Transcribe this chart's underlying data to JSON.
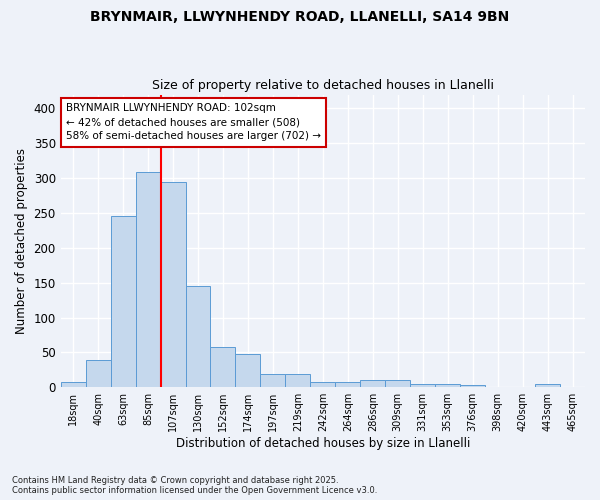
{
  "title1": "BRYNMAIR, LLWYNHENDY ROAD, LLANELLI, SA14 9BN",
  "title2": "Size of property relative to detached houses in Llanelli",
  "xlabel": "Distribution of detached houses by size in Llanelli",
  "ylabel": "Number of detached properties",
  "bin_labels": [
    "18sqm",
    "40sqm",
    "63sqm",
    "85sqm",
    "107sqm",
    "130sqm",
    "152sqm",
    "174sqm",
    "197sqm",
    "219sqm",
    "242sqm",
    "264sqm",
    "286sqm",
    "309sqm",
    "331sqm",
    "353sqm",
    "376sqm",
    "398sqm",
    "420sqm",
    "443sqm",
    "465sqm"
  ],
  "bin_values": [
    7,
    39,
    245,
    309,
    295,
    145,
    57,
    48,
    19,
    19,
    7,
    7,
    10,
    10,
    4,
    4,
    3,
    1,
    0,
    4,
    0
  ],
  "bar_color": "#c5d8ed",
  "bar_edge_color": "#5b9bd5",
  "red_line_bin_index": 4,
  "annotation_text": "BRYNMAIR LLWYNHENDY ROAD: 102sqm\n← 42% of detached houses are smaller (508)\n58% of semi-detached houses are larger (702) →",
  "annotation_box_color": "#ffffff",
  "annotation_box_edge": "#cc0000",
  "footer": "Contains HM Land Registry data © Crown copyright and database right 2025.\nContains public sector information licensed under the Open Government Licence v3.0.",
  "background_color": "#eef2f9",
  "grid_color": "#ffffff",
  "ylim": [
    0,
    420
  ],
  "yticks": [
    0,
    50,
    100,
    150,
    200,
    250,
    300,
    350,
    400
  ]
}
